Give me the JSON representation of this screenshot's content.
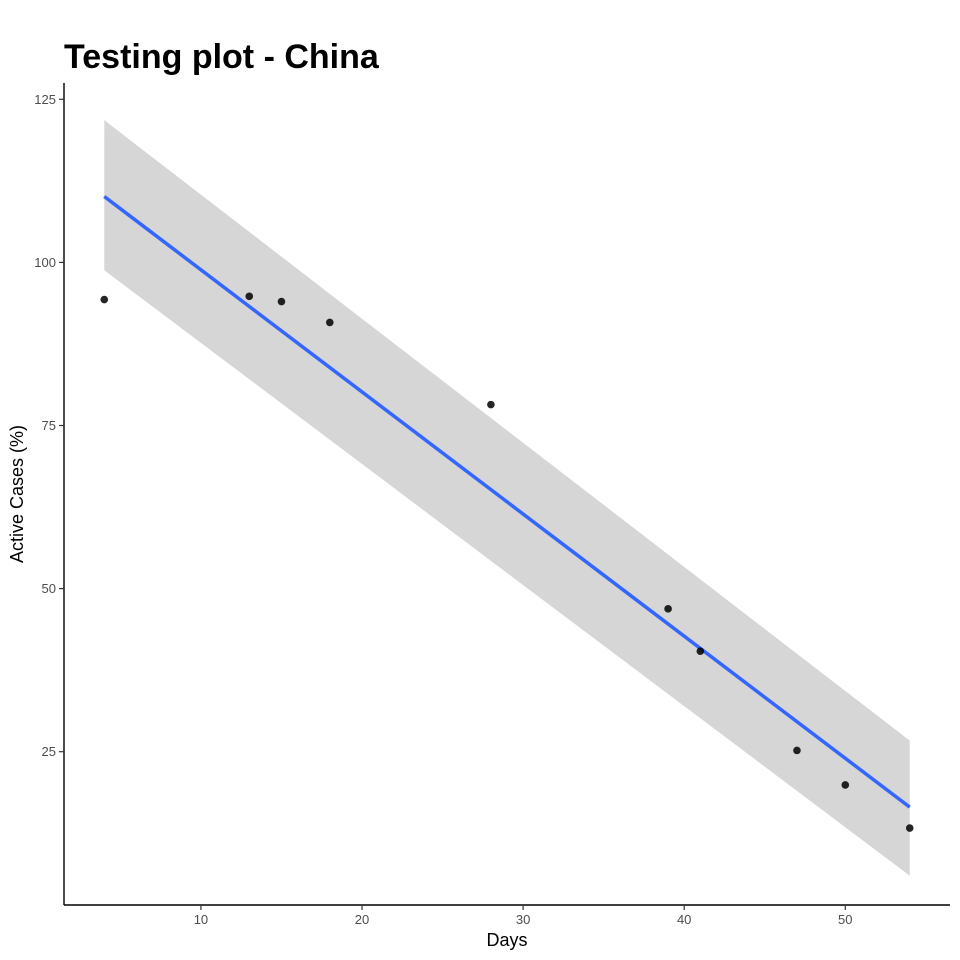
{
  "chart_data": {
    "type": "scatter",
    "title": "Testing plot - China",
    "xlabel": "Days",
    "ylabel": "Active Cases (%)",
    "xlim": [
      1.5,
      56.5
    ],
    "ylim": [
      1.5,
      127.5
    ],
    "x_ticks": [
      10,
      20,
      30,
      40,
      50
    ],
    "y_ticks": [
      25,
      50,
      75,
      100,
      125
    ],
    "points": [
      {
        "x": 4,
        "y": 94.3
      },
      {
        "x": 13,
        "y": 94.8
      },
      {
        "x": 15,
        "y": 94.0
      },
      {
        "x": 18,
        "y": 90.8
      },
      {
        "x": 28,
        "y": 78.2
      },
      {
        "x": 39,
        "y": 46.9
      },
      {
        "x": 41,
        "y": 40.4
      },
      {
        "x": 47,
        "y": 25.2
      },
      {
        "x": 50,
        "y": 19.9
      },
      {
        "x": 54,
        "y": 13.3
      }
    ],
    "fit_line": {
      "x": [
        4,
        54
      ],
      "y": [
        110.1,
        16.5
      ]
    },
    "confidence_band": {
      "x": [
        4,
        54
      ],
      "upper": [
        121.8,
        26.7
      ],
      "lower": [
        98.8,
        6.0
      ]
    },
    "grid": false,
    "colors": {
      "point": "#000000",
      "fit_line": "#3366ff",
      "band": "#d6d6d6"
    }
  }
}
